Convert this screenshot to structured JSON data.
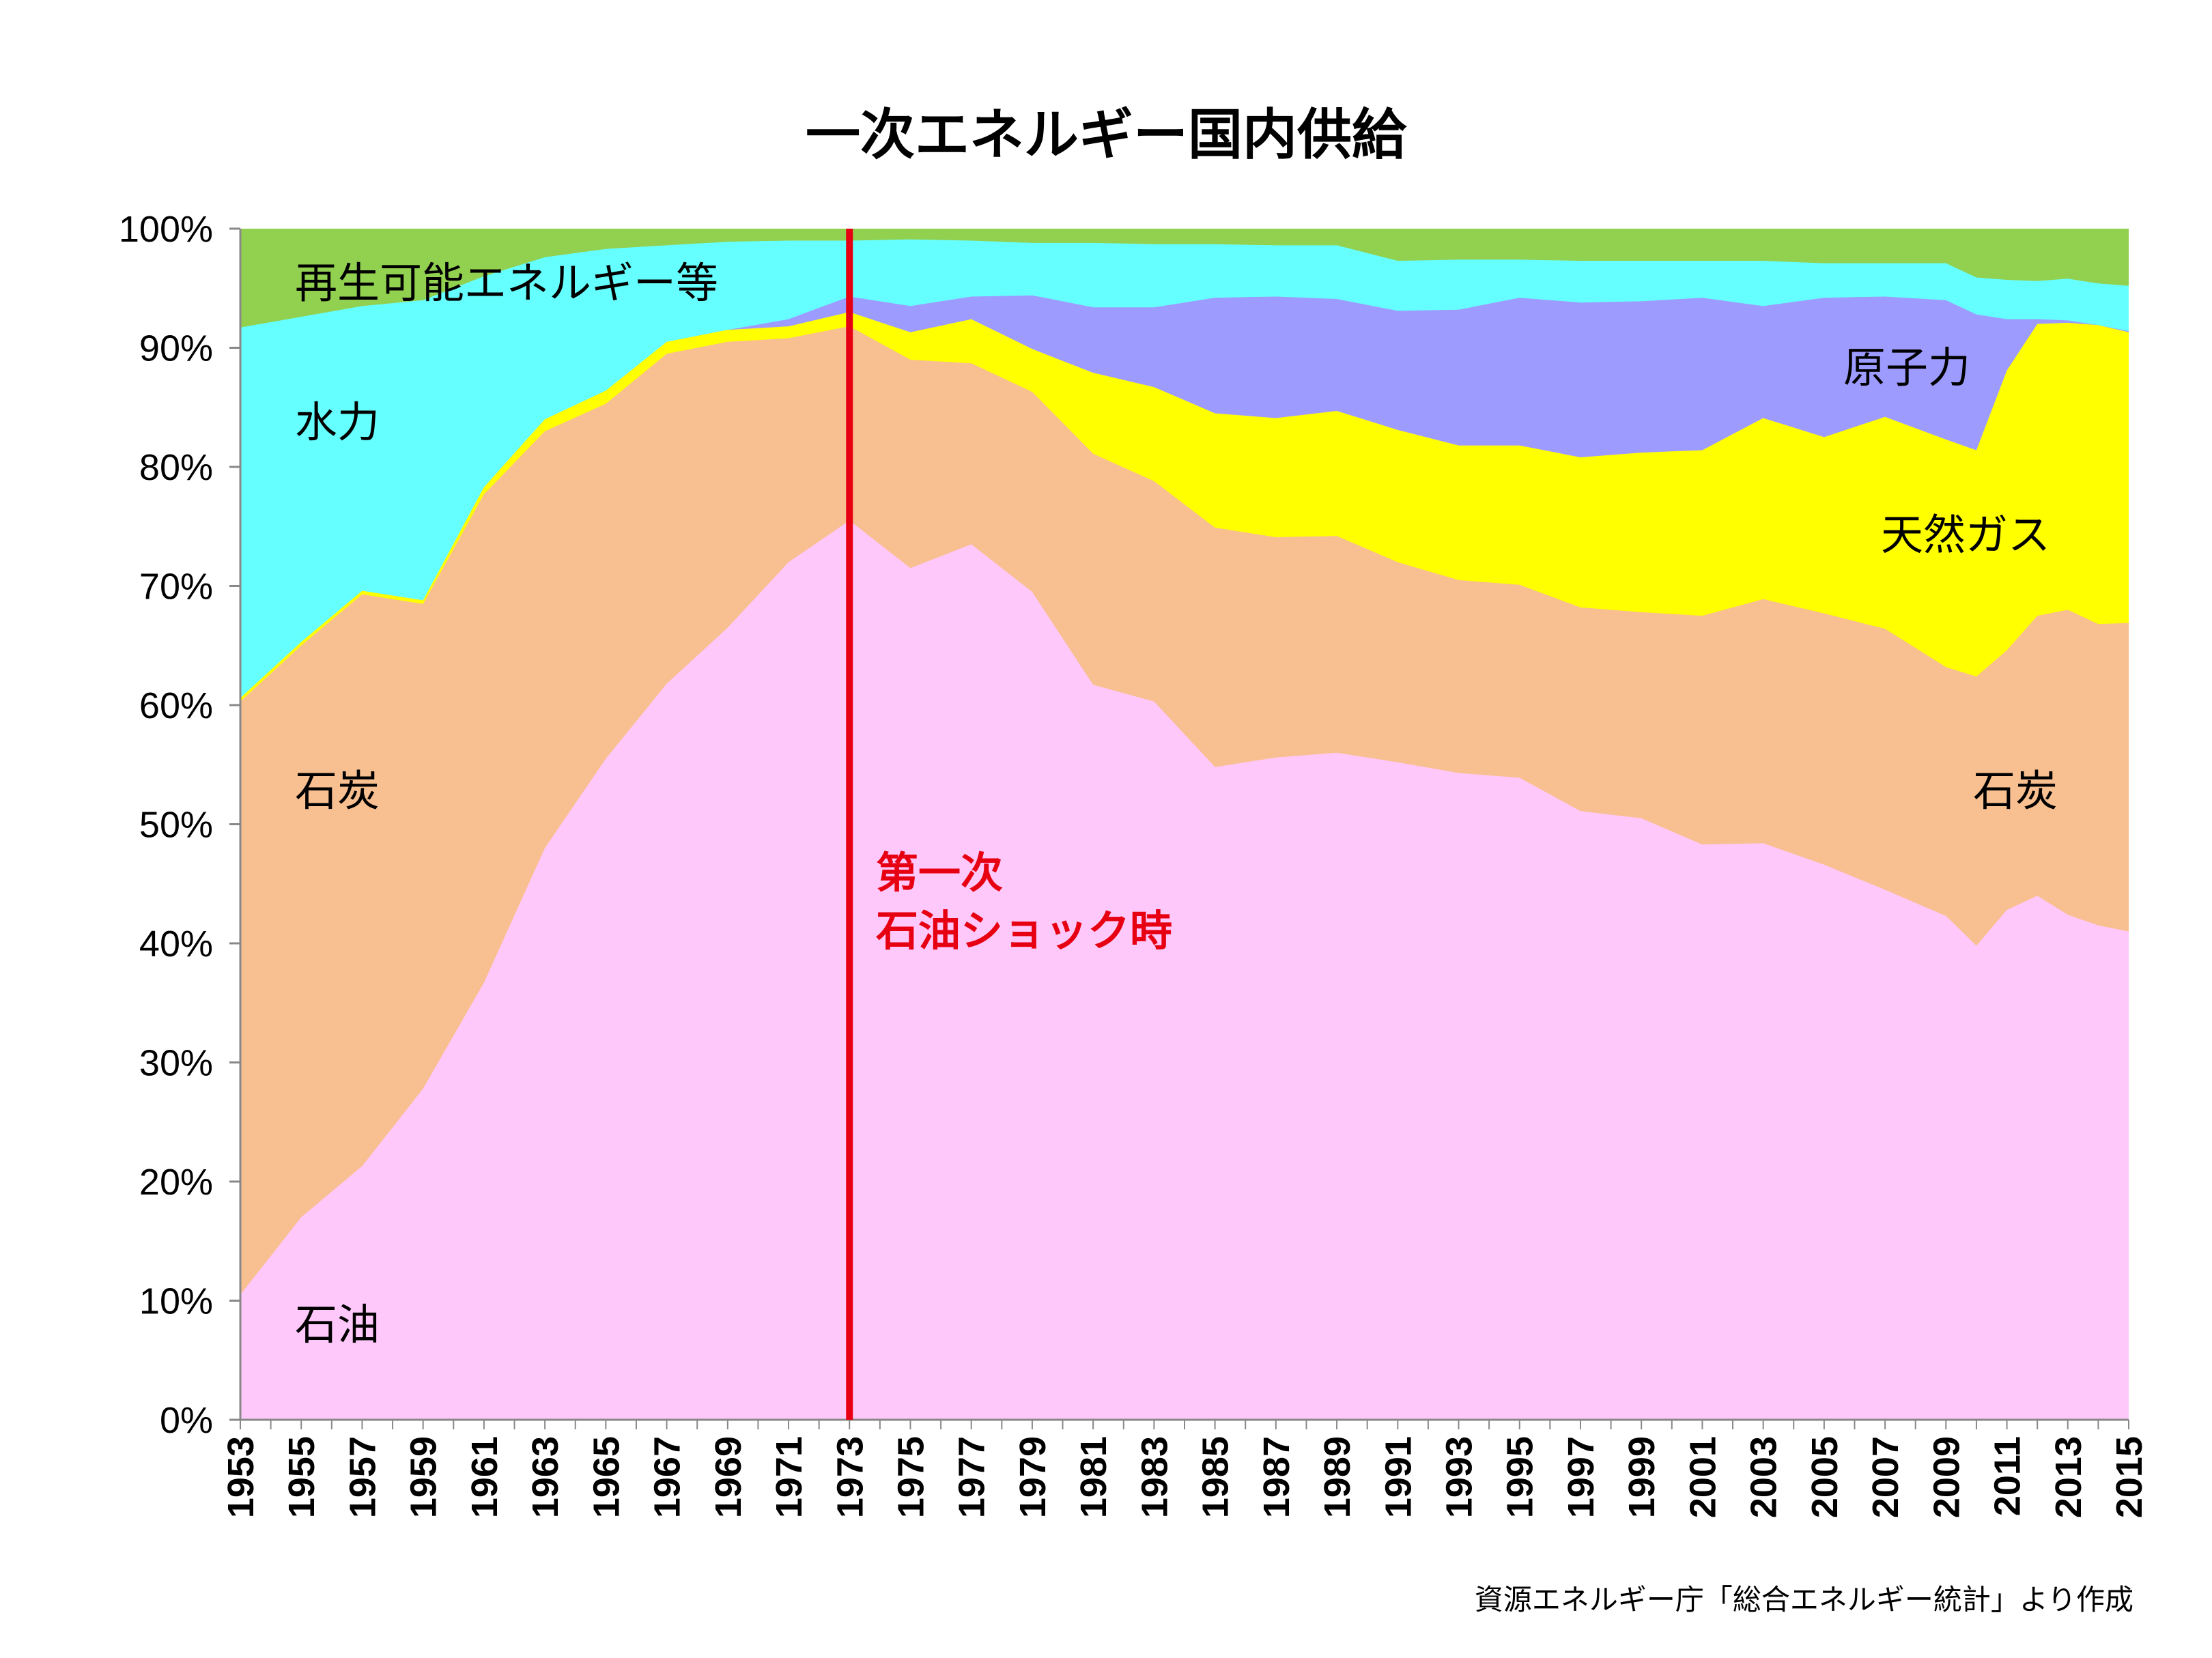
{
  "chart_data": {
    "type": "area",
    "stacked": true,
    "title": "一次エネルギー国内供給",
    "source": "資源エネルギー庁「総合エネルギー統計」より作成",
    "y_ticks": [
      "0%",
      "10%",
      "20%",
      "30%",
      "40%",
      "50%",
      "60%",
      "70%",
      "80%",
      "90%",
      "100%"
    ],
    "ylim": [
      0,
      100
    ],
    "x_tick_labels": [
      "1953",
      "1955",
      "1957",
      "1959",
      "1961",
      "1963",
      "1965",
      "1967",
      "1969",
      "1971",
      "1973",
      "1975",
      "1977",
      "1979",
      "1981",
      "1983",
      "1985",
      "1987",
      "1989",
      "1991",
      "1993",
      "1995",
      "1997",
      "1999",
      "2001",
      "2003",
      "2005",
      "2007",
      "2009",
      "2011",
      "2013",
      "2015"
    ],
    "annotation": {
      "x": 1973,
      "line1": "第一次",
      "line2": "石油ショック時",
      "color": "#e60012"
    },
    "keyframes": {
      "years": [
        1953,
        1955,
        1957,
        1959,
        1961,
        1963,
        1965,
        1967,
        1969,
        1971,
        1973,
        1975,
        1977,
        1979,
        1981,
        1983,
        1985,
        1987,
        1989,
        1991,
        1993,
        1995,
        1997,
        1999,
        2001,
        2003,
        2005,
        2007,
        2009,
        2010,
        2011,
        2012,
        2013,
        2014,
        2015
      ],
      "oil": [
        10.5,
        17.0,
        21.3,
        27.8,
        36.7,
        48.0,
        55.5,
        61.8,
        66.5,
        72.0,
        75.5,
        71.5,
        73.5,
        69.5,
        61.7,
        60.3,
        54.8,
        55.6,
        56.0,
        55.2,
        54.3,
        53.9,
        51.1,
        50.5,
        48.3,
        48.4,
        46.6,
        44.5,
        42.3,
        39.8,
        42.8,
        44.0,
        42.4,
        41.5,
        41.0
      ],
      "coal": [
        60.3,
        65.0,
        69.3,
        68.5,
        77.7,
        83.0,
        85.3,
        89.5,
        90.5,
        90.8,
        91.8,
        89.0,
        88.7,
        86.3,
        81.1,
        78.8,
        74.9,
        74.1,
        74.2,
        72.0,
        70.5,
        70.1,
        68.2,
        67.8,
        67.5,
        68.9,
        67.7,
        66.4,
        63.2,
        62.4,
        64.6,
        67.5,
        68.0,
        66.8,
        66.9
      ],
      "gas": [
        60.6,
        65.3,
        69.6,
        68.8,
        78.3,
        84.0,
        86.4,
        90.5,
        91.5,
        91.8,
        93.0,
        91.3,
        92.4,
        89.9,
        87.9,
        86.7,
        84.5,
        84.1,
        84.7,
        83.1,
        81.8,
        81.8,
        80.8,
        81.2,
        81.4,
        84.1,
        82.5,
        84.2,
        82.3,
        81.4,
        88.1,
        92.0,
        92.1,
        91.9,
        91.3
      ],
      "nuclear": [
        60.6,
        65.3,
        69.6,
        68.8,
        78.3,
        84.0,
        86.4,
        90.5,
        91.5,
        92.4,
        94.3,
        93.5,
        94.3,
        94.4,
        93.4,
        93.4,
        94.2,
        94.3,
        94.1,
        93.1,
        93.2,
        94.2,
        93.8,
        93.9,
        94.2,
        93.5,
        94.2,
        94.3,
        94.0,
        92.8,
        92.4,
        92.4,
        92.3,
        91.9,
        91.4
      ],
      "hydro": [
        91.7,
        92.6,
        93.5,
        94.0,
        96.0,
        97.6,
        98.3,
        98.6,
        98.9,
        99.0,
        99.0,
        99.1,
        99.0,
        98.8,
        98.8,
        98.7,
        98.7,
        98.6,
        98.6,
        97.3,
        97.4,
        97.4,
        97.3,
        97.3,
        97.3,
        97.3,
        97.1,
        97.1,
        97.1,
        95.9,
        95.7,
        95.6,
        95.8,
        95.4,
        95.2
      ],
      "renewables": [
        100,
        100,
        100,
        100,
        100,
        100,
        100,
        100,
        100,
        100,
        100,
        100,
        100,
        100,
        100,
        100,
        100,
        100,
        100,
        100,
        100,
        100,
        100,
        100,
        100,
        100,
        100,
        100,
        100,
        100,
        100,
        100,
        100,
        100,
        100
      ]
    },
    "series": [
      {
        "key": "oil",
        "label": "石油",
        "color": "#ffc8fa"
      },
      {
        "key": "coal",
        "label": "石炭",
        "color": "#f8bf90"
      },
      {
        "key": "gas",
        "label": "天然ガス",
        "color": "#ffff00"
      },
      {
        "key": "nuclear",
        "label": "原子力",
        "color": "#9e9bff"
      },
      {
        "key": "hydro",
        "label": "水力",
        "color": "#66ffff"
      },
      {
        "key": "renewables",
        "label": "再生可能エネルギー等",
        "color": "#92d050"
      }
    ],
    "series_labels": {
      "renewables": "再生可能エネルギー等",
      "hydro": "水力",
      "coal_left": "石炭",
      "oil": "石油",
      "nuclear": "原子力",
      "gas": "天然ガス",
      "coal_right": "石炭"
    }
  }
}
